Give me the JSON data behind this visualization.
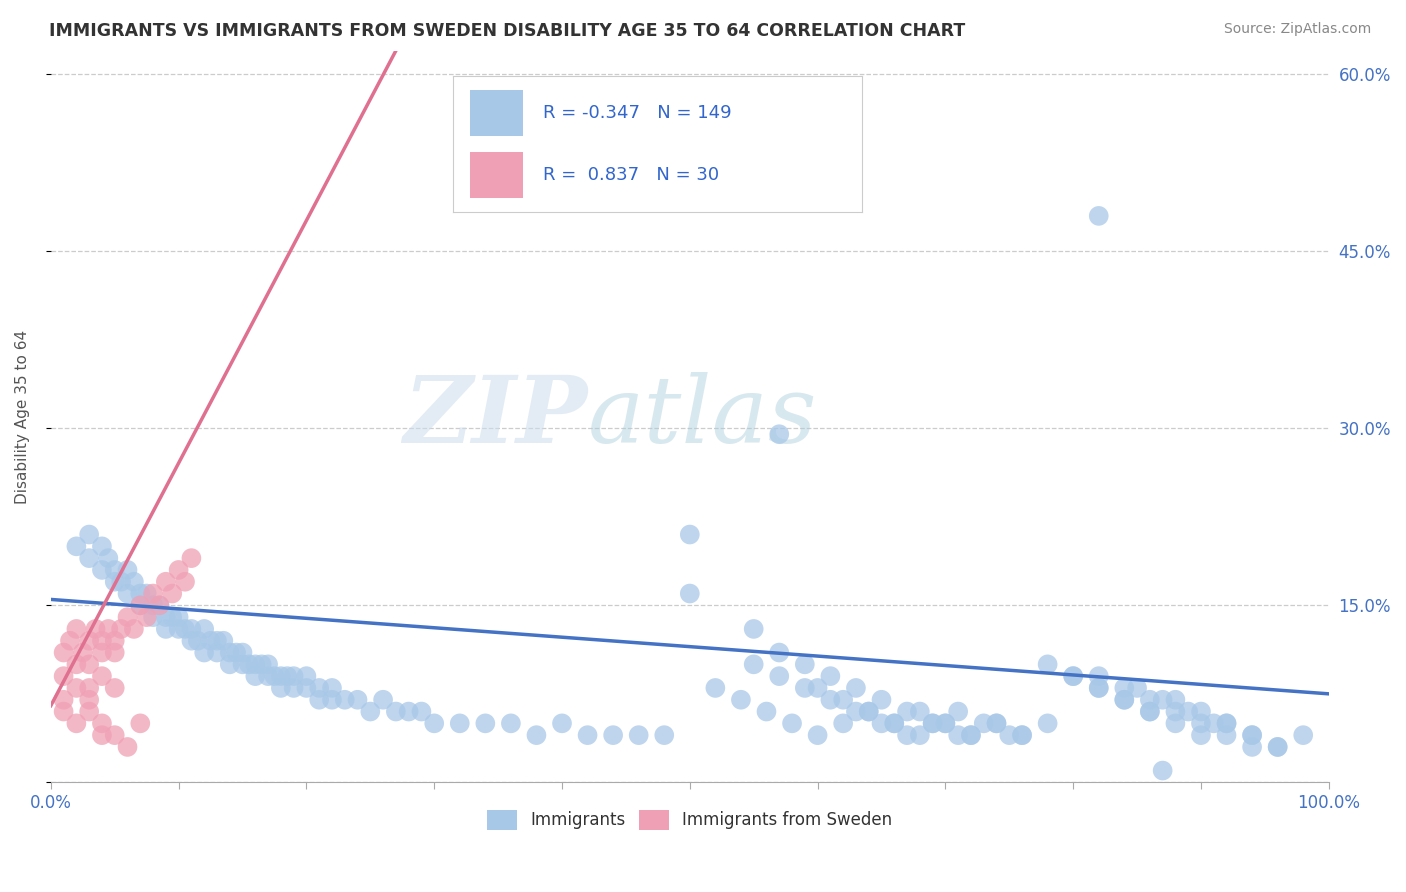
{
  "title": "IMMIGRANTS VS IMMIGRANTS FROM SWEDEN DISABILITY AGE 35 TO 64 CORRELATION CHART",
  "source": "Source: ZipAtlas.com",
  "ylabel": "Disability Age 35 to 64",
  "xlim": [
    0.0,
    1.0
  ],
  "ylim": [
    0.0,
    0.62
  ],
  "xticks": [
    0.0,
    0.1,
    0.2,
    0.3,
    0.4,
    0.5,
    0.6,
    0.7,
    0.8,
    0.9,
    1.0
  ],
  "xticklabels": [
    "0.0%",
    "",
    "",
    "",
    "",
    "",
    "",
    "",
    "",
    "",
    "100.0%"
  ],
  "yticks": [
    0.0,
    0.15,
    0.3,
    0.45,
    0.6
  ],
  "yticklabels_right": [
    "",
    "15.0%",
    "30.0%",
    "45.0%",
    "60.0%"
  ],
  "blue_color": "#a8c8e8",
  "pink_color": "#f0a0b4",
  "blue_line_color": "#4472c4",
  "pink_line_color": "#e07090",
  "legend_blue_label": "Immigrants",
  "legend_pink_label": "Immigrants from Sweden",
  "R_blue": -0.347,
  "N_blue": 149,
  "R_pink": 0.837,
  "N_pink": 30,
  "watermark_zip": "ZIP",
  "watermark_atlas": "atlas",
  "blue_trend_x0": 0.0,
  "blue_trend_y0": 0.155,
  "blue_trend_x1": 1.0,
  "blue_trend_y1": 0.075,
  "pink_trend_x0": 0.0,
  "pink_trend_y0": 0.065,
  "pink_trend_x1": 0.27,
  "pink_trend_y1": 0.62,
  "blue_scatter_x": [
    0.02,
    0.03,
    0.03,
    0.04,
    0.04,
    0.045,
    0.05,
    0.05,
    0.055,
    0.06,
    0.06,
    0.065,
    0.07,
    0.07,
    0.075,
    0.08,
    0.08,
    0.085,
    0.09,
    0.09,
    0.095,
    0.1,
    0.1,
    0.105,
    0.11,
    0.11,
    0.115,
    0.12,
    0.12,
    0.125,
    0.13,
    0.13,
    0.135,
    0.14,
    0.14,
    0.145,
    0.15,
    0.15,
    0.155,
    0.16,
    0.16,
    0.165,
    0.17,
    0.17,
    0.175,
    0.18,
    0.18,
    0.185,
    0.19,
    0.19,
    0.2,
    0.2,
    0.21,
    0.21,
    0.22,
    0.22,
    0.23,
    0.24,
    0.25,
    0.26,
    0.27,
    0.28,
    0.29,
    0.3,
    0.32,
    0.34,
    0.36,
    0.38,
    0.4,
    0.42,
    0.44,
    0.46,
    0.48,
    0.5,
    0.52,
    0.54,
    0.56,
    0.58,
    0.6,
    0.62,
    0.64,
    0.66,
    0.68,
    0.7,
    0.72,
    0.74,
    0.76,
    0.78,
    0.8,
    0.82,
    0.84,
    0.86,
    0.88,
    0.9,
    0.92,
    0.94,
    0.96,
    0.98,
    0.5,
    0.55,
    0.57,
    0.59,
    0.61,
    0.63,
    0.65,
    0.67,
    0.69,
    0.71,
    0.73,
    0.75,
    0.6,
    0.62,
    0.64,
    0.66,
    0.68,
    0.7,
    0.72,
    0.74,
    0.76,
    0.78,
    0.8,
    0.82,
    0.84,
    0.86,
    0.88,
    0.9,
    0.92,
    0.94,
    0.96,
    0.82,
    0.84,
    0.86,
    0.88,
    0.9,
    0.92,
    0.94,
    0.85,
    0.87,
    0.89,
    0.91,
    0.55,
    0.57,
    0.59,
    0.61,
    0.63,
    0.65,
    0.67,
    0.69,
    0.71
  ],
  "blue_scatter_y": [
    0.2,
    0.21,
    0.19,
    0.2,
    0.18,
    0.19,
    0.18,
    0.17,
    0.17,
    0.18,
    0.16,
    0.17,
    0.16,
    0.15,
    0.16,
    0.15,
    0.14,
    0.15,
    0.14,
    0.13,
    0.14,
    0.13,
    0.14,
    0.13,
    0.12,
    0.13,
    0.12,
    0.13,
    0.11,
    0.12,
    0.12,
    0.11,
    0.12,
    0.11,
    0.1,
    0.11,
    0.1,
    0.11,
    0.1,
    0.1,
    0.09,
    0.1,
    0.09,
    0.1,
    0.09,
    0.09,
    0.08,
    0.09,
    0.08,
    0.09,
    0.08,
    0.09,
    0.08,
    0.07,
    0.08,
    0.07,
    0.07,
    0.07,
    0.06,
    0.07,
    0.06,
    0.06,
    0.06,
    0.05,
    0.05,
    0.05,
    0.05,
    0.04,
    0.05,
    0.04,
    0.04,
    0.04,
    0.04,
    0.21,
    0.08,
    0.07,
    0.06,
    0.05,
    0.04,
    0.05,
    0.06,
    0.05,
    0.04,
    0.05,
    0.04,
    0.05,
    0.04,
    0.1,
    0.09,
    0.08,
    0.07,
    0.06,
    0.07,
    0.06,
    0.05,
    0.04,
    0.03,
    0.04,
    0.16,
    0.13,
    0.11,
    0.1,
    0.09,
    0.08,
    0.07,
    0.06,
    0.05,
    0.06,
    0.05,
    0.04,
    0.08,
    0.07,
    0.06,
    0.05,
    0.06,
    0.05,
    0.04,
    0.05,
    0.04,
    0.05,
    0.09,
    0.08,
    0.07,
    0.06,
    0.05,
    0.04,
    0.05,
    0.04,
    0.03,
    0.09,
    0.08,
    0.07,
    0.06,
    0.05,
    0.04,
    0.03,
    0.08,
    0.07,
    0.06,
    0.05,
    0.1,
    0.09,
    0.08,
    0.07,
    0.06,
    0.05,
    0.04,
    0.05,
    0.04
  ],
  "pink_scatter_x": [
    0.01,
    0.01,
    0.015,
    0.02,
    0.02,
    0.025,
    0.03,
    0.03,
    0.035,
    0.04,
    0.04,
    0.045,
    0.05,
    0.05,
    0.055,
    0.06,
    0.065,
    0.07,
    0.075,
    0.08,
    0.085,
    0.09,
    0.095,
    0.1,
    0.105,
    0.11,
    0.03,
    0.04,
    0.05,
    0.07
  ],
  "pink_scatter_y": [
    0.11,
    0.09,
    0.12,
    0.13,
    0.1,
    0.11,
    0.12,
    0.1,
    0.13,
    0.12,
    0.11,
    0.13,
    0.12,
    0.11,
    0.13,
    0.14,
    0.13,
    0.15,
    0.14,
    0.16,
    0.15,
    0.17,
    0.16,
    0.18,
    0.17,
    0.19,
    0.08,
    0.09,
    0.08,
    0.05
  ],
  "extra_pink_x": [
    0.01,
    0.01,
    0.02,
    0.02,
    0.03,
    0.03,
    0.04,
    0.04,
    0.05,
    0.06
  ],
  "extra_pink_y": [
    0.07,
    0.06,
    0.08,
    0.05,
    0.07,
    0.06,
    0.05,
    0.04,
    0.04,
    0.03
  ],
  "outlier_blue_x": [
    0.82
  ],
  "outlier_blue_y": [
    0.48
  ],
  "outlier_blue2_x": [
    0.57
  ],
  "outlier_blue2_y": [
    0.295
  ],
  "outlier_blue3_x": [
    0.87
  ],
  "outlier_blue3_y": [
    0.01
  ]
}
